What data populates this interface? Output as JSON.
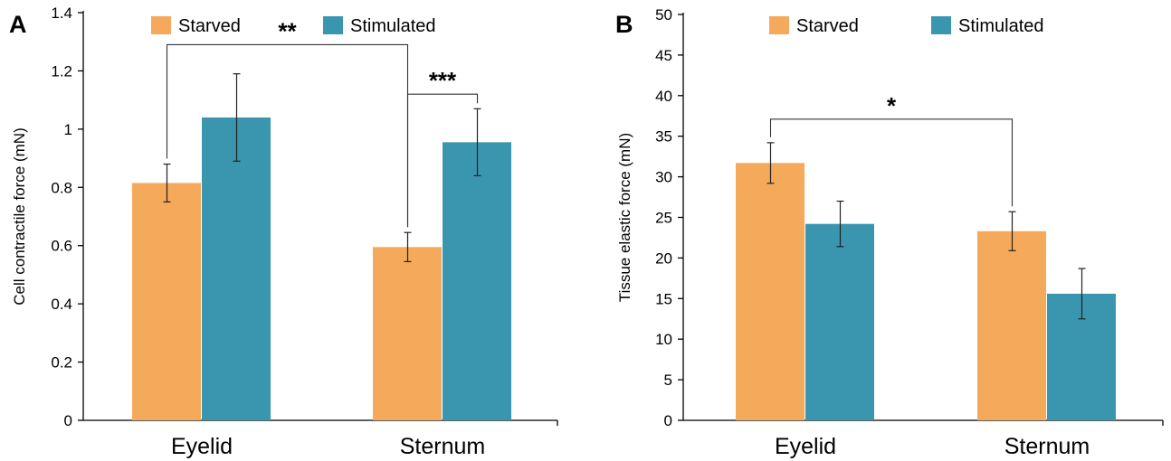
{
  "chart_data": [
    {
      "type": "bar",
      "panel": "A",
      "categories": [
        "Eyelid",
        "Sternum"
      ],
      "series": [
        {
          "name": "Starved",
          "values": [
            0.815,
            0.595
          ],
          "errors": [
            0.065,
            0.05
          ]
        },
        {
          "name": "Stimulated",
          "values": [
            1.04,
            0.955
          ],
          "errors": [
            0.15,
            0.115
          ]
        }
      ],
      "ylabel": "Cell contractile force (mN)",
      "ylim": [
        0,
        1.4
      ],
      "yticks": [
        "0",
        "0.2",
        "0.4",
        "0.6",
        "0.8",
        "1",
        "1.2",
        "1.4"
      ],
      "grid": false,
      "legend": "top",
      "significance": [
        {
          "label": "**",
          "from": {
            "category": 0,
            "series": 0
          },
          "to": {
            "category": 1,
            "series": 0
          },
          "y": 1.29
        },
        {
          "label": "***",
          "from": {
            "category": 1,
            "series": 0
          },
          "to": {
            "category": 1,
            "series": 1
          },
          "y": 1.12
        }
      ]
    },
    {
      "type": "bar",
      "panel": "B",
      "categories": [
        "Eyelid",
        "Sternum"
      ],
      "series": [
        {
          "name": "Starved",
          "values": [
            31.7,
            23.3
          ],
          "errors": [
            2.5,
            2.4
          ]
        },
        {
          "name": "Stimulated",
          "values": [
            24.2,
            15.6
          ],
          "errors": [
            2.8,
            3.1
          ]
        }
      ],
      "ylabel": "Tissue elastic force (mN)",
      "ylim": [
        0,
        50
      ],
      "yticks": [
        "0",
        "5",
        "10",
        "15",
        "20",
        "25",
        "30",
        "35",
        "40",
        "45",
        "50"
      ],
      "grid": false,
      "legend": "top",
      "significance": [
        {
          "label": "*",
          "from": {
            "category": 0,
            "series": 0
          },
          "to": {
            "category": 1,
            "series": 0
          },
          "y": 37.1
        }
      ]
    }
  ],
  "colors": {
    "starved": "#F5A95B",
    "stimulated": "#3A96AE",
    "axis": "#000000"
  }
}
